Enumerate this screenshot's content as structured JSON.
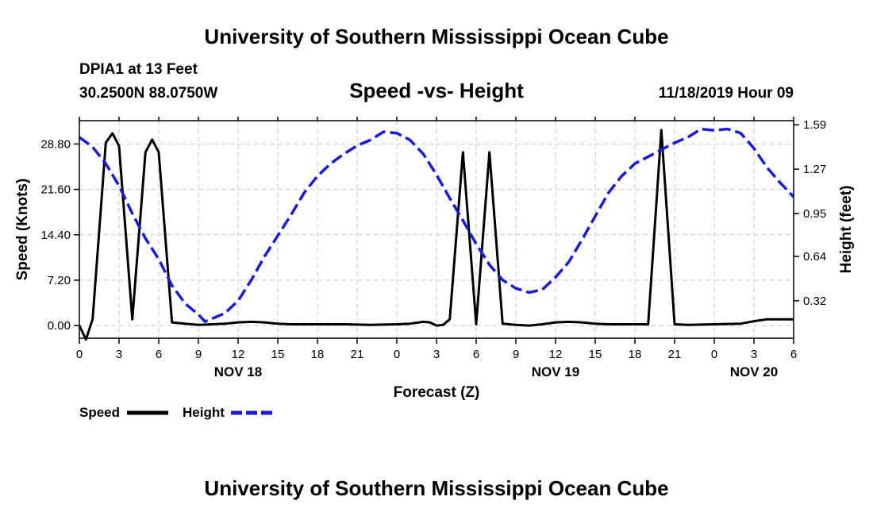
{
  "header": {
    "title": "University of Southern Mississippi Ocean Cube",
    "station": "DPIA1 at 13 Feet",
    "coords": "30.2500N 88.0750W",
    "chart_title": "Speed -vs- Height",
    "datetime": "11/18/2019 Hour 09"
  },
  "footer": {
    "title": "University of Southern Mississippi Ocean Cube"
  },
  "chart_data": {
    "type": "line",
    "title": "Speed -vs- Height",
    "xlabel": "Forecast (Z)",
    "ylabel_left": "Speed (Knots)",
    "ylabel_right": "Height (feet)",
    "x_hours_range": [
      0,
      54
    ],
    "x_tick_labels": [
      "0",
      "3",
      "6",
      "9",
      "12",
      "15",
      "18",
      "21",
      "0",
      "3",
      "6",
      "9",
      "12",
      "15",
      "18",
      "21",
      "0",
      "3",
      "6"
    ],
    "x_tick_hours": [
      0,
      3,
      6,
      9,
      12,
      15,
      18,
      21,
      24,
      27,
      30,
      33,
      36,
      39,
      42,
      45,
      48,
      51,
      54
    ],
    "day_labels": [
      {
        "label": "NOV 18",
        "hour": 12
      },
      {
        "label": "NOV 19",
        "hour": 36
      },
      {
        "label": "NOV 20",
        "hour": 51
      }
    ],
    "ylim_left": [
      -2.0,
      32.5
    ],
    "ylim_right": [
      0.05,
      1.62
    ],
    "yticks_left": [
      "0.00",
      "7.20",
      "14.40",
      "21.60",
      "28.80"
    ],
    "yticks_left_values": [
      0,
      7.2,
      14.4,
      21.6,
      28.8
    ],
    "yticks_right": [
      "0.32",
      "0.64",
      "0.95",
      "1.27",
      "1.59"
    ],
    "yticks_right_values": [
      0.32,
      0.64,
      0.95,
      1.27,
      1.59
    ],
    "grid": true,
    "series": [
      {
        "name": "Speed",
        "axis": "left",
        "color": "#000000",
        "style": "solid",
        "points": [
          [
            0,
            0
          ],
          [
            0.5,
            -2.2
          ],
          [
            1,
            1
          ],
          [
            2,
            29
          ],
          [
            2.5,
            30.5
          ],
          [
            3,
            28.5
          ],
          [
            4,
            1
          ],
          [
            5,
            27.5
          ],
          [
            5.5,
            29.5
          ],
          [
            6,
            27.5
          ],
          [
            7,
            0.5
          ],
          [
            8,
            0.3
          ],
          [
            9,
            0.1
          ],
          [
            10,
            0.2
          ],
          [
            11,
            0.3
          ],
          [
            12,
            0.5
          ],
          [
            13,
            0.6
          ],
          [
            14,
            0.5
          ],
          [
            15,
            0.3
          ],
          [
            16,
            0.2
          ],
          [
            18,
            0.2
          ],
          [
            20,
            0.2
          ],
          [
            22,
            0.1
          ],
          [
            24,
            0.2
          ],
          [
            25,
            0.3
          ],
          [
            26,
            0.6
          ],
          [
            26.5,
            0.5
          ],
          [
            27,
            0
          ],
          [
            27.5,
            0.1
          ],
          [
            28,
            1
          ],
          [
            29,
            27.5
          ],
          [
            30,
            0.2
          ],
          [
            31,
            27.5
          ],
          [
            32,
            0.3
          ],
          [
            33,
            0.1
          ],
          [
            34,
            0
          ],
          [
            35,
            0.2
          ],
          [
            36,
            0.5
          ],
          [
            37,
            0.6
          ],
          [
            38,
            0.5
          ],
          [
            39,
            0.3
          ],
          [
            40,
            0.2
          ],
          [
            41,
            0.2
          ],
          [
            42,
            0.2
          ],
          [
            43,
            0.2
          ],
          [
            44,
            31
          ],
          [
            45,
            0.2
          ],
          [
            46,
            0.1
          ],
          [
            48,
            0.2
          ],
          [
            50,
            0.3
          ],
          [
            51,
            0.7
          ],
          [
            52,
            1
          ],
          [
            54,
            1
          ]
        ]
      },
      {
        "name": "Height",
        "axis": "right",
        "color": "#1a1adb",
        "style": "dashed",
        "points": [
          [
            0,
            1.5
          ],
          [
            1,
            1.43
          ],
          [
            2,
            1.31
          ],
          [
            3,
            1.15
          ],
          [
            4,
            0.95
          ],
          [
            5,
            0.77
          ],
          [
            6,
            0.62
          ],
          [
            7,
            0.43
          ],
          [
            8,
            0.3
          ],
          [
            9,
            0.22
          ],
          [
            9.5,
            0.17
          ],
          [
            10,
            0.19
          ],
          [
            11,
            0.23
          ],
          [
            12,
            0.32
          ],
          [
            13,
            0.47
          ],
          [
            14,
            0.64
          ],
          [
            15,
            0.79
          ],
          [
            16,
            0.94
          ],
          [
            17,
            1.1
          ],
          [
            18,
            1.22
          ],
          [
            19,
            1.31
          ],
          [
            20,
            1.38
          ],
          [
            21,
            1.44
          ],
          [
            22,
            1.48
          ],
          [
            23,
            1.54
          ],
          [
            24,
            1.53
          ],
          [
            25,
            1.48
          ],
          [
            26,
            1.38
          ],
          [
            27,
            1.23
          ],
          [
            28,
            1.06
          ],
          [
            29,
            0.9
          ],
          [
            30,
            0.73
          ],
          [
            31,
            0.58
          ],
          [
            32,
            0.47
          ],
          [
            33,
            0.41
          ],
          [
            34,
            0.38
          ],
          [
            35,
            0.4
          ],
          [
            36,
            0.49
          ],
          [
            37,
            0.6
          ],
          [
            38,
            0.76
          ],
          [
            39,
            0.93
          ],
          [
            40,
            1.1
          ],
          [
            41,
            1.22
          ],
          [
            42,
            1.31
          ],
          [
            43,
            1.36
          ],
          [
            44,
            1.41
          ],
          [
            45,
            1.46
          ],
          [
            46,
            1.5
          ],
          [
            47,
            1.56
          ],
          [
            48,
            1.55
          ],
          [
            49,
            1.56
          ],
          [
            50,
            1.53
          ],
          [
            51,
            1.42
          ],
          [
            52,
            1.28
          ],
          [
            53,
            1.17
          ],
          [
            54,
            1.07
          ]
        ]
      }
    ],
    "legend": [
      {
        "label": "Speed",
        "color": "#000000",
        "style": "solid"
      },
      {
        "label": "Height",
        "color": "#1a1adb",
        "style": "dashed"
      }
    ],
    "legend_position": "bottom-left"
  }
}
